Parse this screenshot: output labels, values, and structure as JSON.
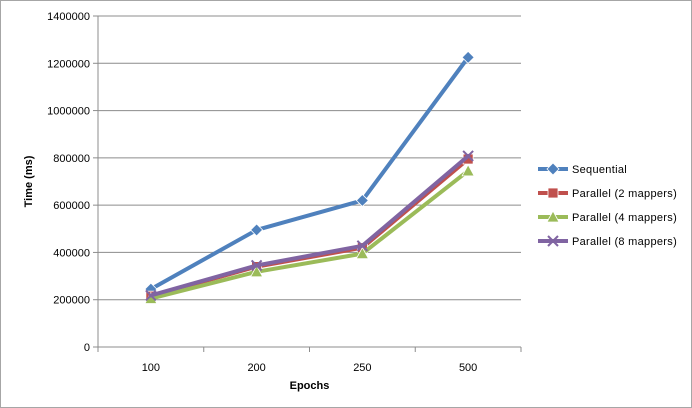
{
  "chart_data": {
    "type": "line",
    "xlabel": "Epochs",
    "ylabel": "Time (ms)",
    "categories": [
      "100",
      "200",
      "250",
      "500"
    ],
    "ylim": [
      0,
      1400000
    ],
    "yticks": [
      "0",
      "200000",
      "400000",
      "600000",
      "800000",
      "1000000",
      "1200000",
      "1400000"
    ],
    "grid": true,
    "legend_position": "right",
    "series": [
      {
        "name": "Sequential",
        "values": [
          245000,
          495000,
          620000,
          1225000
        ],
        "color": "#4f81bd",
        "marker": "diamond"
      },
      {
        "name": "Parallel (2 mappers)",
        "values": [
          215000,
          340000,
          420000,
          795000
        ],
        "color": "#c0504d",
        "marker": "square"
      },
      {
        "name": "Parallel (4 mappers)",
        "values": [
          205000,
          318000,
          395000,
          745000
        ],
        "color": "#9bbb59",
        "marker": "triangle"
      },
      {
        "name": "Parallel (8 mappers)",
        "values": [
          218000,
          345000,
          428000,
          808000
        ],
        "color": "#8064a2",
        "marker": "x"
      }
    ]
  }
}
